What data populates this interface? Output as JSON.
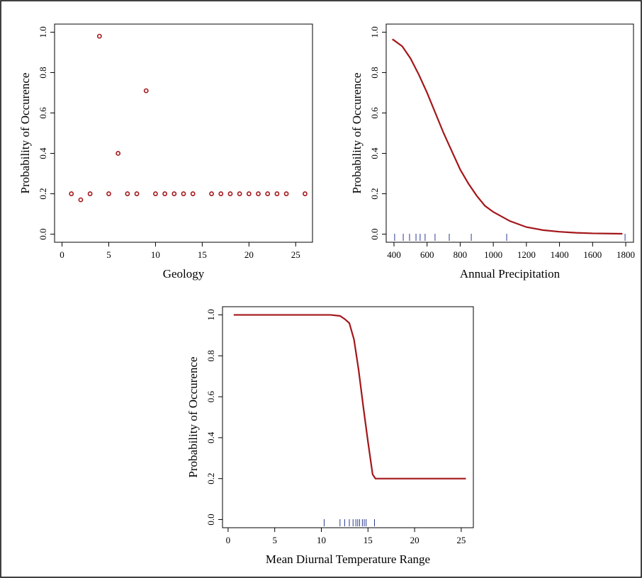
{
  "chart_data": [
    {
      "type": "scatter",
      "x_label": "Geology",
      "y_label": "Probability of Occurence",
      "x": [
        1,
        2,
        3,
        4,
        5,
        6,
        7,
        8,
        9,
        10,
        11,
        12,
        13,
        14,
        16,
        17,
        18,
        19,
        20,
        21,
        22,
        23,
        24,
        26
      ],
      "values": [
        0.2,
        0.17,
        0.2,
        0.98,
        0.2,
        0.4,
        0.2,
        0.2,
        0.71,
        0.2,
        0.2,
        0.2,
        0.2,
        0.2,
        0.2,
        0.2,
        0.2,
        0.2,
        0.2,
        0.2,
        0.2,
        0.2,
        0.2,
        0.2
      ],
      "color": "#a3161a",
      "xlim": [
        -0.8,
        26.8
      ],
      "xticks": [
        0,
        5,
        10,
        15,
        20,
        25
      ],
      "ylim": [
        -0.04,
        1.04
      ],
      "yticks": [
        {
          "value": 0,
          "label": "0.0"
        },
        0.2,
        0.4,
        0.6,
        0.8,
        {
          "value": 1,
          "label": "1.0"
        }
      ]
    },
    {
      "type": "line",
      "x_label": "Annual Precipitation",
      "y_label": "Probability of Occurence",
      "x": [
        390,
        400,
        450,
        500,
        550,
        600,
        650,
        700,
        750,
        800,
        850,
        900,
        950,
        1000,
        1100,
        1200,
        1300,
        1400,
        1500,
        1600,
        1700,
        1780
      ],
      "values": [
        0.965,
        0.96,
        0.93,
        0.87,
        0.79,
        0.7,
        0.6,
        0.5,
        0.41,
        0.32,
        0.25,
        0.19,
        0.14,
        0.11,
        0.065,
        0.035,
        0.02,
        0.012,
        0.007,
        0.004,
        0.003,
        0.002
      ],
      "color": "#a3161a",
      "rug": [
        404,
        456,
        494,
        533,
        558,
        588,
        648,
        734,
        867,
        1081,
        1796
      ],
      "rug_color": "#2a3a8f",
      "xlim": [
        353,
        1847
      ],
      "xticks": [
        400,
        600,
        800,
        1000,
        1200,
        1400,
        1600,
        1800
      ],
      "ylim": [
        -0.04,
        1.04
      ],
      "yticks": [
        {
          "value": 0,
          "label": "0.0"
        },
        0.2,
        0.4,
        0.6,
        0.8,
        {
          "value": 1,
          "label": "1.0"
        }
      ]
    },
    {
      "type": "line",
      "x_label": "Mean Diurnal Temperature Range",
      "y_label": "Probability of Occurence",
      "x": [
        0.6,
        11,
        12,
        12.5,
        13,
        13.5,
        14,
        14.5,
        15,
        15.5,
        15.8,
        25.5
      ],
      "values": [
        1,
        1,
        0.995,
        0.98,
        0.96,
        0.88,
        0.73,
        0.55,
        0.38,
        0.22,
        0.2,
        0.2
      ],
      "color": "#a3161a",
      "rug": [
        10.3,
        12.0,
        12.5,
        13.0,
        13.4,
        13.7,
        13.9,
        14.1,
        14.4,
        14.6,
        14.8,
        15.7
      ],
      "rug_color": "#2a3a8f",
      "xlim": [
        -0.6,
        26.3
      ],
      "xticks": [
        0,
        5,
        10,
        15,
        20,
        25
      ],
      "ylim": [
        -0.04,
        1.04
      ],
      "yticks": [
        {
          "value": 0,
          "label": "0.0"
        },
        0.2,
        0.4,
        0.6,
        0.8,
        {
          "value": 1,
          "label": "1.0"
        }
      ]
    }
  ]
}
